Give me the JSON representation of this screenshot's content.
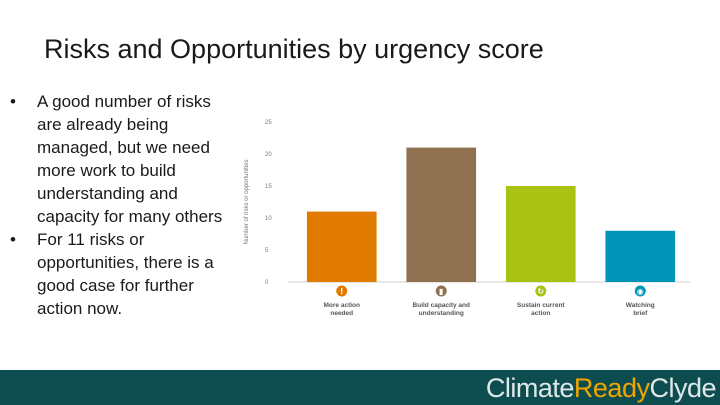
{
  "slide": {
    "title": "Risks and Opportunities by urgency score",
    "bullets": [
      "A good number of risks\nare already being\nmanaged, but we need\nmore work to build\nunderstanding and\ncapacity for many others",
      "For 11 risks or\nopportunities, there is a\ngood case for further\naction now."
    ],
    "bullet_symbol": "•"
  },
  "footer": {
    "brand_part1": "Climate",
    "brand_part2": "Ready",
    "brand_part3": "Clyde",
    "bg_color": "#0e4d4f",
    "accent_color": "#f0a500"
  },
  "chart_data": {
    "type": "bar",
    "title": "",
    "xlabel": "",
    "ylabel": "Number of risks or opportunities",
    "ylim": [
      0,
      25
    ],
    "yticks": [
      0,
      5,
      10,
      15,
      20,
      25
    ],
    "grid": false,
    "categories": [
      "More action needed",
      "Build capacity and understanding",
      "Sustain current action",
      "Watching brief"
    ],
    "category_lines": [
      [
        "More action",
        "needed"
      ],
      [
        "Build capacity and",
        "understanding"
      ],
      [
        "Sustain current",
        "action"
      ],
      [
        "Watching",
        "brief"
      ]
    ],
    "values": [
      11,
      21,
      15,
      8
    ],
    "colors": [
      "#e07b00",
      "#8f7150",
      "#a9c214",
      "#0095b8"
    ],
    "icons": [
      "exclamation-icon",
      "bar-chart-icon",
      "refresh-icon",
      "eye-icon"
    ],
    "icon_glyphs": [
      "!",
      "▮",
      "↻",
      "◉"
    ]
  }
}
